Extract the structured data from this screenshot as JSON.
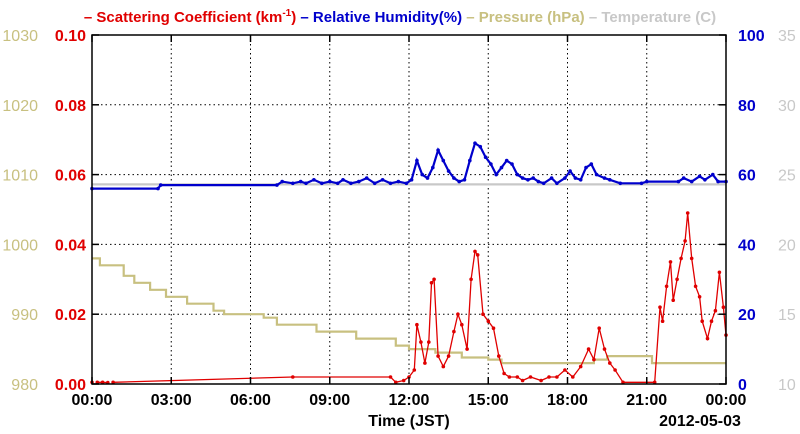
{
  "chart_data": {
    "type": "line",
    "title": "",
    "legend": {
      "placement": "top",
      "entries": [
        {
          "dash": "–",
          "label": "Scattering Coefficient (km",
          "sup": "-1",
          "tail": ")",
          "color": "#e00000"
        },
        {
          "dash": "–",
          "label": "Relative Humidity(%)",
          "color": "#0000cc"
        },
        {
          "dash": "–",
          "label": "Pressure (hPa)",
          "color": "#c8c080"
        },
        {
          "dash": "–",
          "label": "Temperature (C)",
          "color": "#c8c8c8"
        }
      ]
    },
    "xlabel": "Time (JST)",
    "date_label": "2012-05-03",
    "x_ticks": [
      "00:00",
      "03:00",
      "06:00",
      "09:00",
      "12:00",
      "15:00",
      "18:00",
      "21:00",
      "00:00"
    ],
    "xlim_hours": [
      0,
      24
    ],
    "grid": true,
    "axes": {
      "scattering": {
        "side": "left-inner",
        "color": "#e00000",
        "ylim": [
          0,
          0.1
        ],
        "ticks": [
          "0.00",
          "0.02",
          "0.04",
          "0.06",
          "0.08",
          "0.10"
        ]
      },
      "pressure": {
        "side": "left-outer",
        "color": "#c8c080",
        "ylim": [
          980,
          1030
        ],
        "ticks": [
          "980",
          "990",
          "1000",
          "1010",
          "1020",
          "1030"
        ]
      },
      "humidity": {
        "side": "right-inner",
        "color": "#0000cc",
        "ylim": [
          0,
          100
        ],
        "ticks": [
          "0",
          "20",
          "40",
          "60",
          "80",
          "100"
        ]
      },
      "temperature": {
        "side": "right-outer",
        "color": "#c8c8c8",
        "ylim": [
          10,
          35
        ],
        "ticks": [
          "10",
          "15",
          "20",
          "25",
          "30",
          "35"
        ]
      }
    },
    "series": [
      {
        "key": "temperature",
        "name": "Temperature (C)",
        "axis": "temperature",
        "color": "#c8c8c8",
        "markers": false,
        "points": [
          [
            0,
            24.3
          ],
          [
            24,
            24.3
          ]
        ]
      },
      {
        "key": "pressure",
        "name": "Pressure (hPa)",
        "axis": "pressure",
        "color": "#c8c080",
        "markers": false,
        "points": [
          [
            0,
            998
          ],
          [
            0.3,
            998
          ],
          [
            0.3,
            997
          ],
          [
            1.2,
            997
          ],
          [
            1.2,
            995.5
          ],
          [
            1.6,
            995.5
          ],
          [
            1.6,
            994.5
          ],
          [
            2.2,
            994.5
          ],
          [
            2.2,
            993.5
          ],
          [
            2.8,
            993.5
          ],
          [
            2.8,
            992.5
          ],
          [
            3.6,
            992.5
          ],
          [
            3.6,
            991.5
          ],
          [
            4.6,
            991.5
          ],
          [
            4.6,
            990.5
          ],
          [
            5.0,
            990.5
          ],
          [
            5.0,
            990
          ],
          [
            6.5,
            990
          ],
          [
            6.5,
            989.5
          ],
          [
            7.0,
            989.5
          ],
          [
            7.0,
            988.5
          ],
          [
            8.5,
            988.5
          ],
          [
            8.5,
            987.5
          ],
          [
            10.0,
            987.5
          ],
          [
            10.0,
            986.5
          ],
          [
            11.5,
            986.5
          ],
          [
            11.5,
            985.5
          ],
          [
            12.0,
            985.5
          ],
          [
            12.0,
            985
          ],
          [
            13.0,
            985
          ],
          [
            13.0,
            984.5
          ],
          [
            14.0,
            984.5
          ],
          [
            14.0,
            983.8
          ],
          [
            15.0,
            983.8
          ],
          [
            15.0,
            983.5
          ],
          [
            15.5,
            983.5
          ],
          [
            15.5,
            983
          ],
          [
            19.0,
            983
          ],
          [
            19.0,
            983.5
          ],
          [
            19.5,
            983.5
          ],
          [
            19.5,
            984
          ],
          [
            21.2,
            984
          ],
          [
            21.2,
            983
          ],
          [
            24,
            983
          ]
        ]
      },
      {
        "key": "humidity",
        "name": "Relative Humidity(%)",
        "axis": "humidity",
        "color": "#0000cc",
        "markers": true,
        "points": [
          [
            0,
            56
          ],
          [
            2.5,
            56
          ],
          [
            2.6,
            57
          ],
          [
            7.0,
            57
          ],
          [
            7.2,
            58
          ],
          [
            7.6,
            57.5
          ],
          [
            7.9,
            58
          ],
          [
            8.1,
            57.5
          ],
          [
            8.4,
            58.5
          ],
          [
            8.7,
            57.5
          ],
          [
            9.0,
            58
          ],
          [
            9.3,
            57.5
          ],
          [
            9.5,
            58.5
          ],
          [
            9.8,
            57.5
          ],
          [
            10.1,
            58
          ],
          [
            10.4,
            59
          ],
          [
            10.7,
            57.5
          ],
          [
            11.0,
            58.5
          ],
          [
            11.3,
            57.5
          ],
          [
            11.6,
            58
          ],
          [
            11.9,
            57.5
          ],
          [
            12.1,
            58.5
          ],
          [
            12.3,
            64
          ],
          [
            12.5,
            60
          ],
          [
            12.7,
            59
          ],
          [
            12.9,
            62
          ],
          [
            13.1,
            67
          ],
          [
            13.3,
            64
          ],
          [
            13.5,
            61
          ],
          [
            13.7,
            59
          ],
          [
            13.9,
            58
          ],
          [
            14.1,
            58.5
          ],
          [
            14.3,
            64
          ],
          [
            14.5,
            69
          ],
          [
            14.7,
            68
          ],
          [
            14.9,
            65
          ],
          [
            15.1,
            63
          ],
          [
            15.3,
            60
          ],
          [
            15.5,
            62
          ],
          [
            15.7,
            64
          ],
          [
            15.9,
            63
          ],
          [
            16.1,
            60
          ],
          [
            16.3,
            59
          ],
          [
            16.5,
            58.5
          ],
          [
            16.7,
            59
          ],
          [
            16.9,
            58
          ],
          [
            17.1,
            57.5
          ],
          [
            17.4,
            59
          ],
          [
            17.6,
            57.5
          ],
          [
            17.9,
            59
          ],
          [
            18.1,
            61
          ],
          [
            18.3,
            59
          ],
          [
            18.5,
            58.5
          ],
          [
            18.7,
            62
          ],
          [
            18.9,
            63
          ],
          [
            19.1,
            60
          ],
          [
            19.4,
            59
          ],
          [
            19.6,
            58.5
          ],
          [
            20.0,
            57.5
          ],
          [
            20.8,
            57.5
          ],
          [
            21.0,
            58
          ],
          [
            22.2,
            58
          ],
          [
            22.4,
            59
          ],
          [
            22.7,
            58
          ],
          [
            23.0,
            59.5
          ],
          [
            23.2,
            58.5
          ],
          [
            23.5,
            60
          ],
          [
            23.7,
            58
          ],
          [
            24,
            58
          ]
        ]
      },
      {
        "key": "scattering",
        "name": "Scattering Coefficient (km-1)",
        "axis": "scattering",
        "color": "#e00000",
        "markers": true,
        "skip_after": [
          0,
          3
        ],
        "points": [
          [
            0.0,
            0.0005
          ],
          [
            0.2,
            0.0005
          ],
          [
            0.4,
            0.0005
          ],
          [
            0.6,
            0.0004
          ],
          [
            0.8,
            0.0005
          ],
          [
            7.6,
            0.002
          ],
          [
            11.3,
            0.002
          ],
          [
            11.5,
            0.0005
          ],
          [
            11.8,
            0.001
          ],
          [
            12.0,
            0.002
          ],
          [
            12.2,
            0.004
          ],
          [
            12.3,
            0.017
          ],
          [
            12.45,
            0.012
          ],
          [
            12.6,
            0.006
          ],
          [
            12.75,
            0.012
          ],
          [
            12.85,
            0.029
          ],
          [
            12.95,
            0.03
          ],
          [
            13.1,
            0.008
          ],
          [
            13.3,
            0.005
          ],
          [
            13.5,
            0.008
          ],
          [
            13.7,
            0.015
          ],
          [
            13.85,
            0.02
          ],
          [
            14.0,
            0.017
          ],
          [
            14.2,
            0.01
          ],
          [
            14.35,
            0.03
          ],
          [
            14.5,
            0.038
          ],
          [
            14.6,
            0.037
          ],
          [
            14.8,
            0.02
          ],
          [
            15.0,
            0.018
          ],
          [
            15.2,
            0.016
          ],
          [
            15.4,
            0.008
          ],
          [
            15.6,
            0.003
          ],
          [
            15.8,
            0.002
          ],
          [
            16.1,
            0.002
          ],
          [
            16.3,
            0.001
          ],
          [
            16.6,
            0.002
          ],
          [
            17.0,
            0.001
          ],
          [
            17.3,
            0.002
          ],
          [
            17.6,
            0.002
          ],
          [
            17.9,
            0.004
          ],
          [
            18.2,
            0.002
          ],
          [
            18.5,
            0.005
          ],
          [
            18.8,
            0.01
          ],
          [
            19.0,
            0.007
          ],
          [
            19.2,
            0.016
          ],
          [
            19.4,
            0.01
          ],
          [
            19.6,
            0.006
          ],
          [
            19.8,
            0.004
          ],
          [
            20.1,
            0.0005
          ],
          [
            21.3,
            0.0005
          ],
          [
            21.5,
            0.022
          ],
          [
            21.6,
            0.018
          ],
          [
            21.75,
            0.028
          ],
          [
            21.9,
            0.035
          ],
          [
            22.0,
            0.024
          ],
          [
            22.15,
            0.03
          ],
          [
            22.3,
            0.036
          ],
          [
            22.45,
            0.041
          ],
          [
            22.55,
            0.049
          ],
          [
            22.7,
            0.036
          ],
          [
            22.85,
            0.028
          ],
          [
            23.0,
            0.025
          ],
          [
            23.1,
            0.018
          ],
          [
            23.3,
            0.013
          ],
          [
            23.45,
            0.018
          ],
          [
            23.6,
            0.021
          ],
          [
            23.75,
            0.032
          ],
          [
            23.9,
            0.022
          ],
          [
            24.0,
            0.014
          ]
        ]
      }
    ]
  }
}
